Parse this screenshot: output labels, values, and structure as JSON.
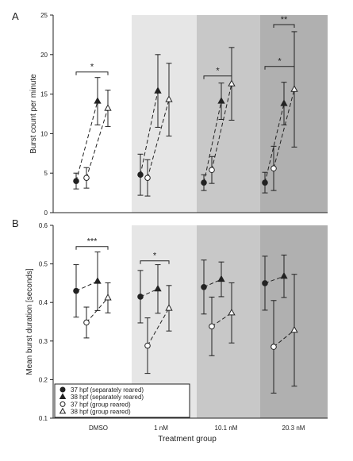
{
  "colors": {
    "bands": [
      "#ffffff",
      "#e6e6e6",
      "#c8c8c8",
      "#b0b0b0"
    ],
    "ink": "#222222",
    "open_fill": "#ffffff"
  },
  "chart_data": [
    {
      "type": "scatter",
      "panel_label": "A",
      "ylabel": "Burst count per minute",
      "ylim": [
        0,
        25
      ],
      "yticks": [
        0,
        5,
        10,
        15,
        20,
        25
      ],
      "categories": [
        "DMSO",
        "1 nM",
        "10.1 nM",
        "20.3 nM"
      ],
      "series": [
        {
          "name": "37 hpf (separately reared)",
          "marker": "circle-filled",
          "values": [
            4.0,
            4.8,
            3.8,
            3.8
          ],
          "err": [
            1.0,
            2.6,
            1.0,
            1.3
          ]
        },
        {
          "name": "38 hpf (separately reared)",
          "marker": "triangle-filled",
          "values": [
            14.1,
            15.4,
            14.1,
            13.8
          ],
          "err": [
            3.0,
            4.6,
            2.3,
            2.7
          ]
        },
        {
          "name": "37 hpf (group reared)",
          "marker": "circle-open",
          "values": [
            4.4,
            4.4,
            5.4,
            5.6
          ],
          "err": [
            1.3,
            2.3,
            1.7,
            2.8
          ]
        },
        {
          "name": "38 hpf (group reared)",
          "marker": "triangle-open",
          "values": [
            13.2,
            14.3,
            16.3,
            15.6
          ],
          "err": [
            2.3,
            4.6,
            4.6,
            7.3
          ]
        }
      ],
      "brackets": [
        {
          "from": 0,
          "to": 3,
          "y": 17.8,
          "label": "*"
        },
        {
          "from": 8,
          "to": 11,
          "y": 17.3,
          "label": "*"
        },
        {
          "from": 12,
          "to": 15,
          "y": 18.5,
          "label": "*"
        },
        {
          "from": 13,
          "to": 15,
          "y": 23.8,
          "label": "**"
        }
      ]
    },
    {
      "type": "scatter",
      "panel_label": "B",
      "ylabel": "Mean burst duration [seconds]",
      "xlabel": "Treatment group",
      "ylim": [
        0.1,
        0.6
      ],
      "yticks": [
        0.1,
        0.2,
        0.3,
        0.4,
        0.5,
        0.6
      ],
      "categories": [
        "DMSO",
        "1 nM",
        "10.1 nM",
        "20.3 nM"
      ],
      "series": [
        {
          "name": "37 hpf (separately reared)",
          "marker": "circle-filled",
          "values": [
            0.43,
            0.415,
            0.44,
            0.45
          ],
          "err": [
            0.068,
            0.068,
            0.07,
            0.07
          ]
        },
        {
          "name": "38 hpf (separately reared)",
          "marker": "triangle-filled",
          "values": [
            0.455,
            0.435,
            0.46,
            0.468
          ],
          "err": [
            0.076,
            0.063,
            0.045,
            0.055
          ]
        },
        {
          "name": "37 hpf (group reared)",
          "marker": "circle-open",
          "values": [
            0.348,
            0.288,
            0.338,
            0.285
          ],
          "err": [
            0.04,
            0.072,
            0.076,
            0.12
          ]
        },
        {
          "name": "38 hpf (group reared)",
          "marker": "triangle-open",
          "values": [
            0.412,
            0.385,
            0.373,
            0.328
          ],
          "err": [
            0.039,
            0.059,
            0.078,
            0.145
          ]
        }
      ],
      "brackets": [
        {
          "from": 0,
          "to": 3,
          "y": 0.545,
          "label": "***"
        },
        {
          "from": 4,
          "to": 7,
          "y": 0.508,
          "label": "*"
        }
      ],
      "legend": {
        "placement": "bottom-left",
        "entries": [
          "37 hpf (separately reared)",
          "38 hpf (separately reared)",
          "37 hpf (group reared)",
          "38 hpf (group reared)"
        ]
      }
    }
  ]
}
